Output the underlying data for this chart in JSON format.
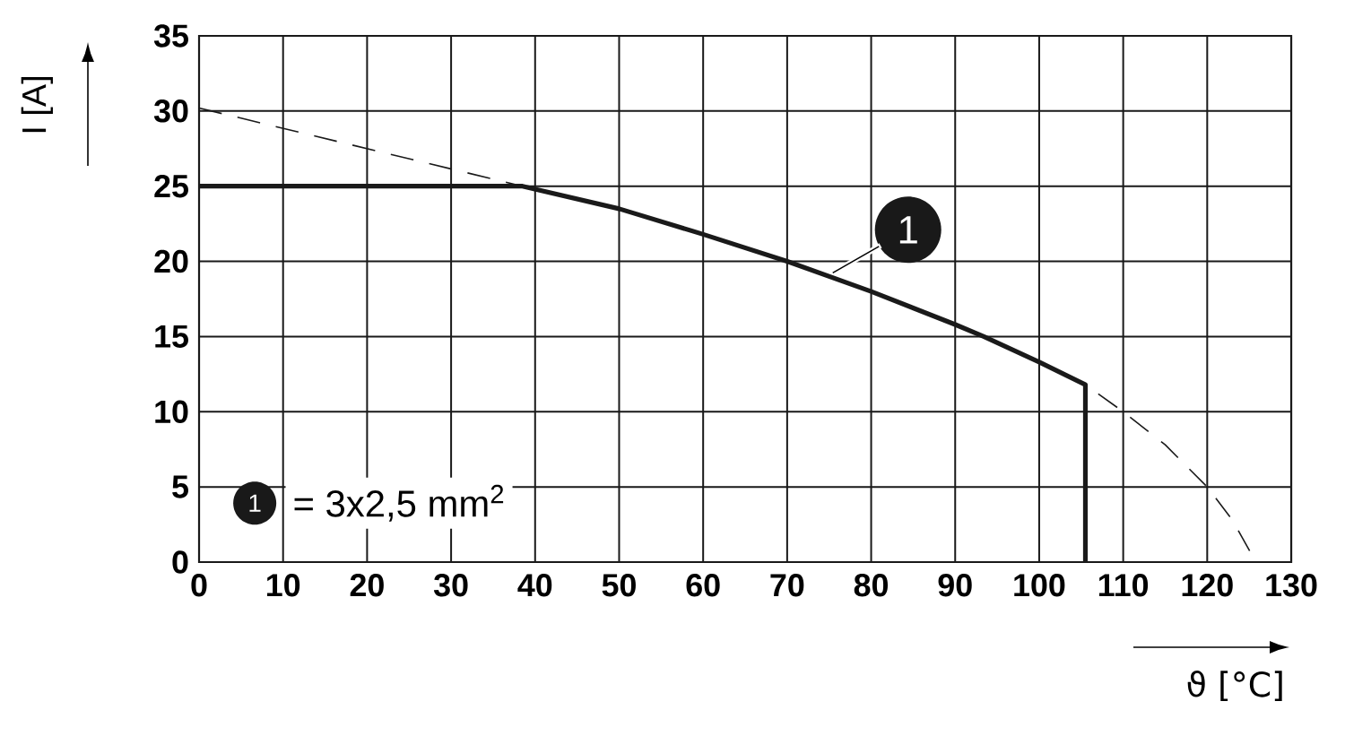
{
  "chart_data": {
    "type": "line",
    "xlabel": "ϑ [°C]",
    "ylabel": "I [A]",
    "xlim": [
      0,
      130
    ],
    "ylim": [
      0,
      35
    ],
    "xticks": [
      0,
      10,
      20,
      30,
      40,
      50,
      60,
      70,
      80,
      90,
      100,
      110,
      120,
      130
    ],
    "yticks": [
      0,
      5,
      10,
      15,
      20,
      25,
      30,
      35
    ],
    "grid": true,
    "marker": "none",
    "series": [
      {
        "color": "#1a1a1a",
        "line_style": "dashed",
        "x": [
          0,
          38.5,
          50,
          60,
          70,
          80,
          90,
          93.4,
          100,
          105.5,
          110,
          115,
          120,
          123,
          125,
          125.5
        ],
        "values": [
          30.2,
          25,
          23.5,
          21.8,
          20,
          18,
          15.8,
          15,
          13.3,
          11.8,
          10,
          7.8,
          5,
          2.8,
          0.8,
          0
        ]
      },
      {
        "color": "#1a1a1a",
        "line_style": "solid",
        "x": [
          0,
          38.5,
          50,
          60,
          70,
          80,
          90,
          93.4,
          100,
          105.5,
          105.5
        ],
        "values": [
          25,
          25,
          23.5,
          21.8,
          20,
          18,
          15.8,
          15,
          13.3,
          11.8,
          0
        ]
      }
    ],
    "annotations": [
      {
        "text": "1",
        "x": 75,
        "y": 19
      },
      "1",
      "= 3x2,5 mm$^{2}$"
    ]
  }
}
